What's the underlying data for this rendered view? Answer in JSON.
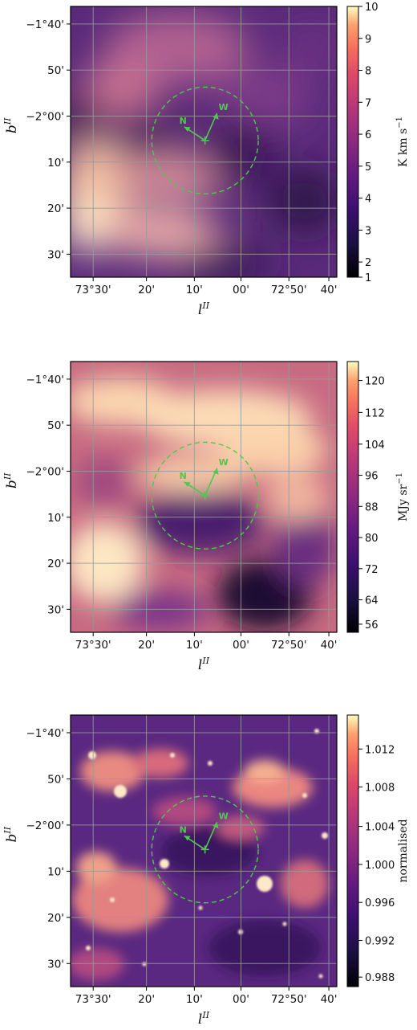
{
  "chart_data": [
    {
      "type": "heatmap",
      "title": "",
      "xlabel": "l",
      "xlabel_sup": "II",
      "ylabel": "b",
      "ylabel_sup": "II",
      "x_ticks": [
        "73°30'",
        "20'",
        "10'",
        "00'",
        "72°50'",
        "40'"
      ],
      "y_ticks": [
        "−1°40'",
        "50'",
        "−2°00'",
        "10'",
        "20'",
        "30'"
      ],
      "colorbar": {
        "label": "K km s",
        "label_sup": "−1",
        "ticks": [
          "10",
          "9",
          "8",
          "7",
          "6",
          "5",
          "4",
          "3",
          "2",
          "1"
        ],
        "range": [
          1,
          10
        ]
      },
      "colormap": "magma",
      "grid": true,
      "compass": {
        "north": "N",
        "west": "W"
      }
    },
    {
      "type": "heatmap",
      "title": "",
      "xlabel": "l",
      "xlabel_sup": "II",
      "ylabel": "b",
      "ylabel_sup": "II",
      "x_ticks": [
        "73°30'",
        "20'",
        "10'",
        "00'",
        "72°50'",
        "40'"
      ],
      "y_ticks": [
        "−1°40'",
        "50'",
        "−2°00'",
        "10'",
        "20'",
        "30'"
      ],
      "colorbar": {
        "label": "MJy sr",
        "label_sup": "−1",
        "ticks": [
          "120",
          "112",
          "104",
          "96",
          "88",
          "80",
          "72",
          "64",
          "56"
        ],
        "range": [
          54,
          122
        ]
      },
      "colormap": "magma",
      "grid": true,
      "compass": {
        "north": "N",
        "west": "W"
      }
    },
    {
      "type": "heatmap",
      "title": "",
      "xlabel": "l",
      "xlabel_sup": "II",
      "ylabel": "b",
      "ylabel_sup": "II",
      "x_ticks": [
        "73°30'",
        "20'",
        "10'",
        "00'",
        "72°50'",
        "40'"
      ],
      "y_ticks": [
        "−1°40'",
        "50'",
        "−2°00'",
        "10'",
        "20'",
        "30'"
      ],
      "colorbar": {
        "label": "normalised",
        "label_sup": "",
        "ticks": [
          "1.012",
          "1.008",
          "1.004",
          "1.000",
          "0.996",
          "0.992",
          "0.988"
        ],
        "range": [
          0.985,
          1.015
        ]
      },
      "colormap": "magma",
      "grid": true,
      "compass": {
        "north": "N",
        "west": "W"
      }
    }
  ]
}
